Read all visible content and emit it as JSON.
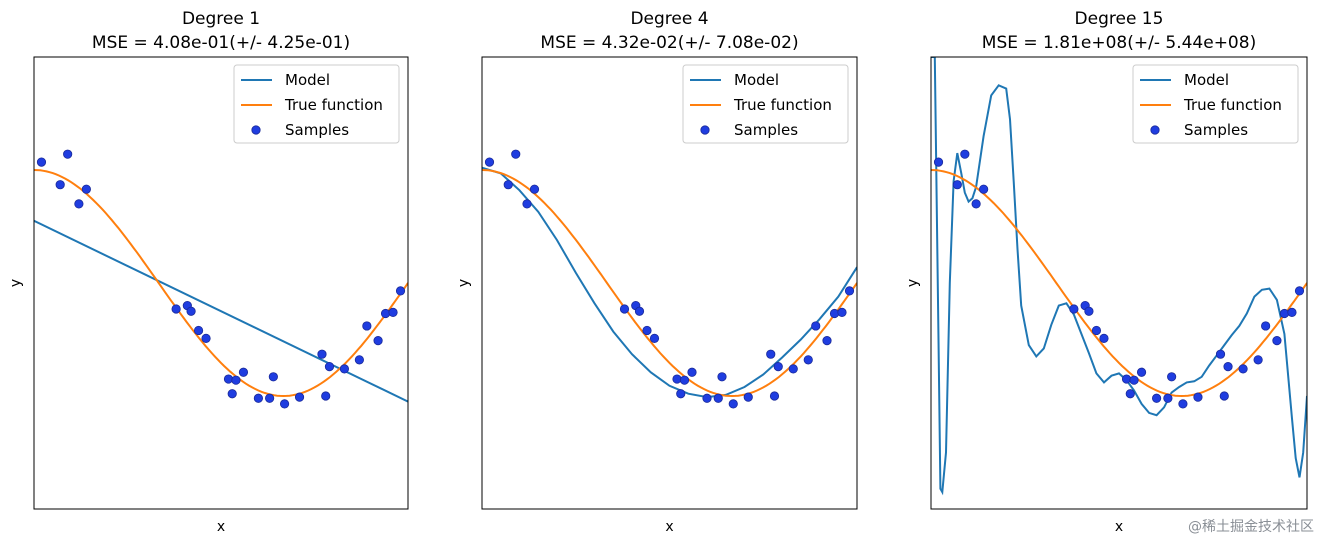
{
  "chart_data": [
    {
      "type": "line",
      "title": "Degree 1",
      "subtitle": "MSE = 4.08e-01(+/- 4.25e-01)",
      "xlabel": "x",
      "ylabel": "y",
      "xlim": [
        0,
        1
      ],
      "ylim": [
        -2,
        2
      ],
      "legend_position": "top-right",
      "legend": [
        "Model",
        "True function",
        "Samples"
      ],
      "series": [
        {
          "name": "Model",
          "color": "#1f77b4",
          "x": [
            0,
            1
          ],
          "y": [
            0.55,
            -1.05
          ]
        },
        {
          "name": "True function",
          "color": "#ff7f0e",
          "curve": "cos(1.5*pi*x)"
        },
        {
          "name": "Samples",
          "color": "#1f3de0",
          "x": [
            0.02,
            0.07,
            0.09,
            0.12,
            0.14,
            0.38,
            0.41,
            0.42,
            0.44,
            0.46,
            0.52,
            0.53,
            0.54,
            0.56,
            0.6,
            0.63,
            0.64,
            0.67,
            0.71,
            0.77,
            0.78,
            0.79,
            0.83,
            0.87,
            0.89,
            0.92,
            0.94,
            0.96,
            0.98
          ],
          "y": [
            1.07,
            0.87,
            1.14,
            0.7,
            0.83,
            -0.23,
            -0.2,
            -0.25,
            -0.42,
            -0.49,
            -0.85,
            -0.98,
            -0.86,
            -0.79,
            -1.02,
            -1.02,
            -0.83,
            -1.07,
            -1.01,
            -0.63,
            -1.0,
            -0.74,
            -0.76,
            -0.68,
            -0.38,
            -0.51,
            -0.27,
            -0.26,
            -0.07
          ]
        }
      ]
    },
    {
      "type": "line",
      "title": "Degree 4",
      "subtitle": "MSE = 4.32e-02(+/- 7.08e-02)",
      "xlabel": "x",
      "ylabel": "y",
      "xlim": [
        0,
        1
      ],
      "ylim": [
        -2,
        2
      ],
      "legend_position": "top-right",
      "legend": [
        "Model",
        "True function",
        "Samples"
      ],
      "series": [
        {
          "name": "Model",
          "color": "#1f77b4",
          "x": [
            0,
            0.05,
            0.1,
            0.15,
            0.2,
            0.25,
            0.3,
            0.35,
            0.4,
            0.45,
            0.5,
            0.55,
            0.6,
            0.65,
            0.7,
            0.75,
            0.8,
            0.85,
            0.9,
            0.95,
            1.0
          ],
          "y": [
            1.02,
            0.97,
            0.82,
            0.63,
            0.38,
            0.09,
            -0.18,
            -0.43,
            -0.63,
            -0.79,
            -0.91,
            -0.98,
            -1.01,
            -0.99,
            -0.92,
            -0.81,
            -0.66,
            -0.5,
            -0.32,
            -0.12,
            0.14
          ]
        },
        {
          "name": "True function",
          "color": "#ff7f0e",
          "curve": "cos(1.5*pi*x)"
        },
        {
          "name": "Samples",
          "color": "#1f3de0",
          "x": [
            0.02,
            0.07,
            0.09,
            0.12,
            0.14,
            0.38,
            0.41,
            0.42,
            0.44,
            0.46,
            0.52,
            0.53,
            0.54,
            0.56,
            0.6,
            0.63,
            0.64,
            0.67,
            0.71,
            0.77,
            0.78,
            0.79,
            0.83,
            0.87,
            0.89,
            0.92,
            0.94,
            0.96,
            0.98
          ],
          "y": [
            1.07,
            0.87,
            1.14,
            0.7,
            0.83,
            -0.23,
            -0.2,
            -0.25,
            -0.42,
            -0.49,
            -0.85,
            -0.98,
            -0.86,
            -0.79,
            -1.02,
            -1.02,
            -0.83,
            -1.07,
            -1.01,
            -0.63,
            -1.0,
            -0.74,
            -0.76,
            -0.68,
            -0.38,
            -0.51,
            -0.27,
            -0.26,
            -0.07
          ]
        }
      ]
    },
    {
      "type": "line",
      "title": "Degree 15",
      "subtitle": "MSE = 1.81e+08(+/- 5.44e+08)",
      "xlabel": "x",
      "ylabel": "y",
      "xlim": [
        0,
        1
      ],
      "ylim": [
        -2,
        2
      ],
      "legend_position": "top-right",
      "legend": [
        "Model",
        "True function",
        "Samples"
      ],
      "series": [
        {
          "name": "Model",
          "color": "#1f77b4",
          "x": [
            0.0,
            0.01,
            0.02,
            0.025,
            0.03,
            0.04,
            0.05,
            0.06,
            0.07,
            0.08,
            0.09,
            0.1,
            0.11,
            0.12,
            0.14,
            0.16,
            0.18,
            0.2,
            0.2,
            0.21,
            0.22,
            0.23,
            0.24,
            0.26,
            0.28,
            0.3,
            0.32,
            0.34,
            0.36,
            0.38,
            0.4,
            0.42,
            0.44,
            0.46,
            0.48,
            0.5,
            0.52,
            0.54,
            0.56,
            0.58,
            0.6,
            0.62,
            0.64,
            0.66,
            0.68,
            0.7,
            0.72,
            0.74,
            0.76,
            0.78,
            0.8,
            0.82,
            0.84,
            0.86,
            0.88,
            0.9,
            0.92,
            0.94,
            0.96,
            0.97,
            0.98,
            0.99,
            1.0
          ],
          "y": [
            2.0,
            2.0,
            -0.5,
            -1.82,
            -1.85,
            -1.5,
            0.0,
            0.9,
            1.15,
            0.98,
            0.8,
            0.72,
            0.75,
            0.85,
            1.3,
            1.66,
            1.75,
            1.72,
            1.72,
            1.45,
            0.9,
            0.3,
            -0.2,
            -0.55,
            -0.65,
            -0.58,
            -0.37,
            -0.2,
            -0.18,
            -0.28,
            -0.45,
            -0.62,
            -0.8,
            -0.88,
            -0.82,
            -0.8,
            -0.86,
            -0.95,
            -1.07,
            -1.15,
            -1.17,
            -1.1,
            -0.97,
            -0.92,
            -0.88,
            -0.87,
            -0.83,
            -0.73,
            -0.64,
            -0.55,
            -0.46,
            -0.38,
            -0.27,
            -0.12,
            -0.06,
            -0.05,
            -0.15,
            -0.45,
            -1.2,
            -1.55,
            -1.72,
            -1.5,
            -1.0
          ]
        },
        {
          "name": "True function",
          "color": "#ff7f0e",
          "curve": "cos(1.5*pi*x)"
        },
        {
          "name": "Samples",
          "color": "#1f3de0",
          "x": [
            0.02,
            0.07,
            0.09,
            0.12,
            0.14,
            0.38,
            0.41,
            0.42,
            0.44,
            0.46,
            0.52,
            0.53,
            0.54,
            0.56,
            0.6,
            0.63,
            0.64,
            0.67,
            0.71,
            0.77,
            0.78,
            0.79,
            0.83,
            0.87,
            0.89,
            0.92,
            0.94,
            0.96,
            0.98
          ],
          "y": [
            1.07,
            0.87,
            1.14,
            0.7,
            0.83,
            -0.23,
            -0.2,
            -0.25,
            -0.42,
            -0.49,
            -0.85,
            -0.98,
            -0.86,
            -0.79,
            -1.02,
            -1.02,
            -0.83,
            -1.07,
            -1.01,
            -0.63,
            -1.0,
            -0.74,
            -0.76,
            -0.68,
            -0.38,
            -0.51,
            -0.27,
            -0.26,
            -0.07
          ]
        }
      ]
    }
  ],
  "watermark": "@稀土掘金技术社区"
}
